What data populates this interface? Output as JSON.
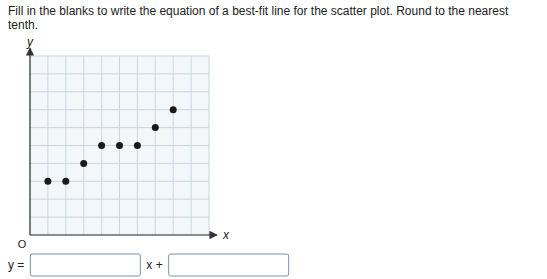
{
  "chart_data": {
    "type": "scatter",
    "title": "Fill in the blanks to write the equation of a best-fit line for the scatter plot. Round to the nearest tenth.",
    "x": [
      1,
      2,
      3,
      4,
      5,
      6,
      7,
      8
    ],
    "values": [
      3,
      3,
      4,
      5,
      5,
      5,
      6,
      7
    ],
    "color": "#1a1a1a",
    "xlabel": "x",
    "ylabel": "y",
    "xlim": [
      0,
      10
    ],
    "ylim": [
      0,
      10
    ],
    "xticks": [
      0,
      1,
      2,
      3,
      4,
      5,
      6,
      7,
      8,
      9,
      10
    ],
    "yticks": [
      0,
      1,
      2,
      3,
      4,
      5,
      6,
      7,
      8,
      9,
      10
    ],
    "grid": true,
    "tick_labels": false,
    "annotations": [
      "O",
      "y =",
      "x +"
    ]
  }
}
